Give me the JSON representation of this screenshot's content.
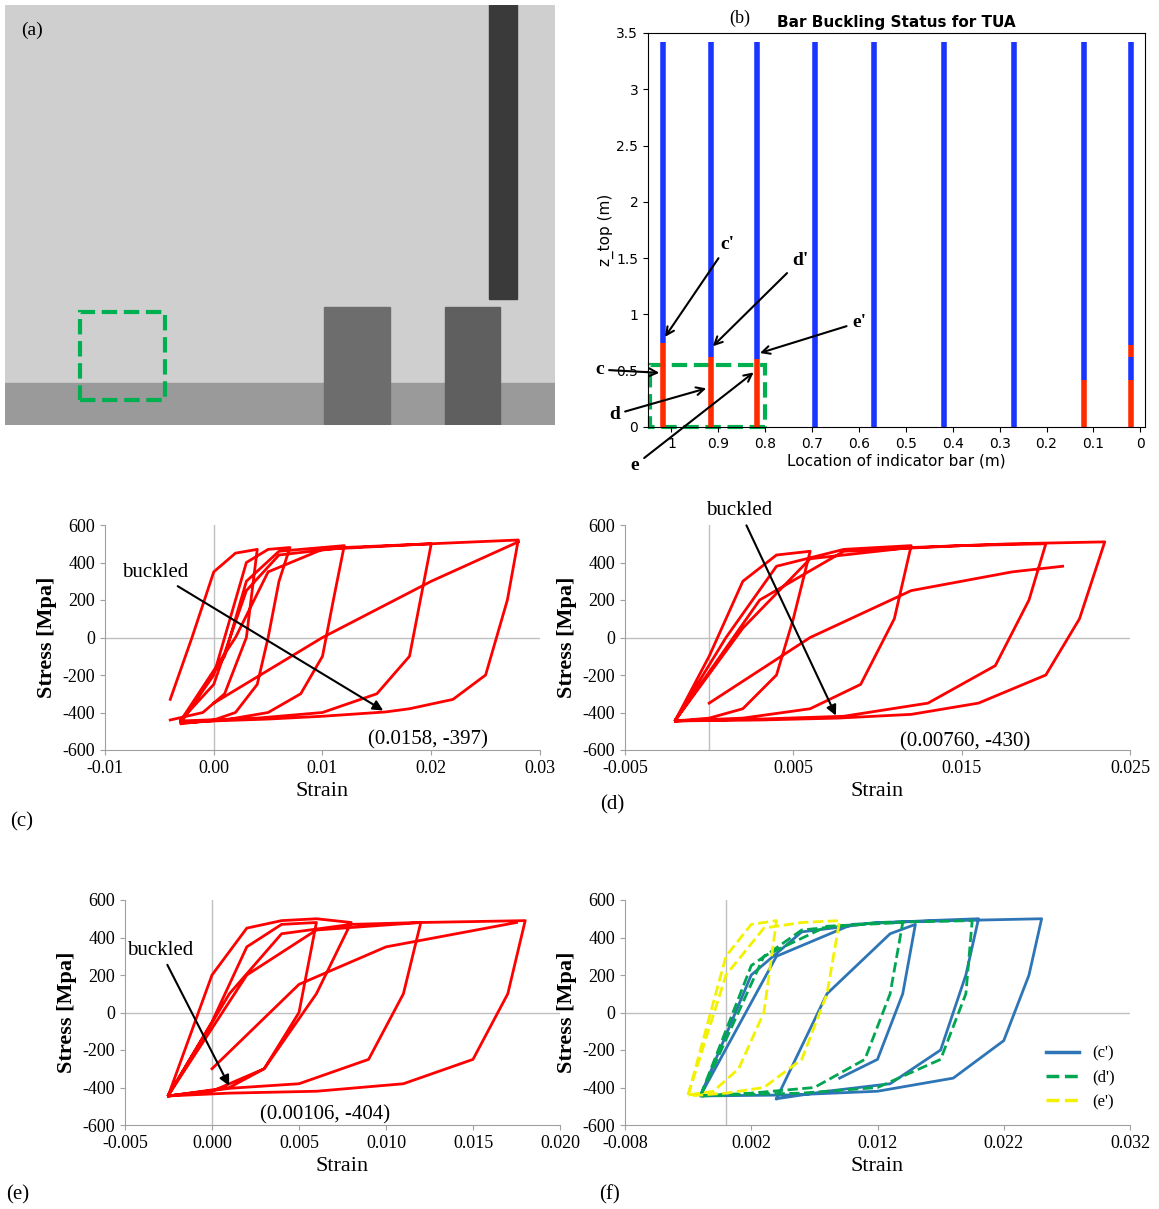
{
  "chart_data": [
    {
      "type": "photo",
      "panel_label": "(a)"
    },
    {
      "type": "segment_bars",
      "panel_label": "(b)",
      "title": "Bar Buckling Status for TUA",
      "x_label": "Location of indicator bar (m)",
      "y_label": "z_top (m)",
      "xlim": [
        1.05,
        -0.01
      ],
      "xticks": [
        1,
        0.9,
        0.8,
        0.7,
        0.6,
        0.5,
        0.4,
        0.3,
        0.2,
        0.1,
        0
      ],
      "ylim": [
        0,
        3.5
      ],
      "yticks": [
        0,
        0.5,
        1,
        1.5,
        2,
        2.5,
        3,
        3.5
      ],
      "bars": [
        {
          "x": 1.017,
          "segments": [
            {
              "from": 0,
              "to": 0.75,
              "color": "#ff2a00"
            },
            {
              "from": 0.75,
              "to": 3.42,
              "color": "#1a35ff"
            }
          ]
        },
        {
          "x": 0.916,
          "segments": [
            {
              "from": 0,
              "to": 0.62,
              "color": "#ff2a00"
            },
            {
              "from": 0.62,
              "to": 3.42,
              "color": "#1a35ff"
            }
          ]
        },
        {
          "x": 0.817,
          "segments": [
            {
              "from": 0,
              "to": 0.6,
              "color": "#ff2a00"
            },
            {
              "from": 0.6,
              "to": 3.42,
              "color": "#1a35ff"
            }
          ]
        },
        {
          "x": 0.693,
          "segments": [
            {
              "from": 0,
              "to": 3.42,
              "color": "#1a35ff"
            }
          ]
        },
        {
          "x": 0.568,
          "segments": [
            {
              "from": 0,
              "to": 3.42,
              "color": "#1a35ff"
            }
          ]
        },
        {
          "x": 0.419,
          "segments": [
            {
              "from": 0,
              "to": 3.42,
              "color": "#1a35ff"
            }
          ]
        },
        {
          "x": 0.269,
          "segments": [
            {
              "from": 0,
              "to": 3.42,
              "color": "#1a35ff"
            }
          ]
        },
        {
          "x": 0.12,
          "segments": [
            {
              "from": 0,
              "to": 0.42,
              "color": "#ff2a00"
            },
            {
              "from": 0.42,
              "to": 3.42,
              "color": "#1a35ff"
            }
          ]
        },
        {
          "x": 0.019,
          "segments": [
            {
              "from": 0,
              "to": 0.42,
              "color": "#ff2a00"
            },
            {
              "from": 0.42,
              "to": 0.62,
              "color": "#1a35ff"
            },
            {
              "from": 0.62,
              "to": 0.73,
              "color": "#ff2a00"
            },
            {
              "from": 0.73,
              "to": 3.42,
              "color": "#1a35ff"
            }
          ]
        }
      ],
      "highlight": {
        "x": [
          1.045,
          0.8
        ],
        "y": [
          0,
          0.55
        ],
        "color": "#00b050"
      },
      "annotations": [
        {
          "text": "c'",
          "point": [
            1.017,
            0.78
          ],
          "text_at": [
            0.88,
            1.62
          ]
        },
        {
          "text": "d'",
          "point": [
            0.916,
            0.7
          ],
          "text_at": [
            0.726,
            1.48
          ]
        },
        {
          "text": "e'",
          "point": [
            0.817,
            0.65
          ],
          "text_at": [
            0.6,
            0.93
          ]
        },
        {
          "text": "c",
          "point": [
            1.02,
            0.48
          ],
          "text_at": [
            1.154,
            0.51
          ]
        },
        {
          "text": "d",
          "point": [
            0.92,
            0.35
          ],
          "text_at": [
            1.122,
            0.11
          ]
        },
        {
          "text": "e",
          "point": [
            0.82,
            0.5
          ],
          "text_at": [
            1.078,
            -0.34
          ]
        }
      ]
    },
    {
      "type": "line",
      "panel_label": "(c)",
      "x_label": "Strain",
      "y_label": "Stress [Mpa]",
      "xlim": [
        -0.01,
        0.03
      ],
      "xticks": [
        -0.01,
        {
          "value": 0,
          "label": "0.00"
        },
        0.01,
        0.02,
        0.03
      ],
      "ylim": [
        -600,
        600
      ],
      "yticks": [
        -600,
        -400,
        -200,
        0,
        200,
        400,
        600
      ],
      "series": [
        {
          "color": "#ff0000",
          "x": [
            -0.003,
            0.0,
            0.002,
            0.003,
            0.005,
            0.007,
            0.006,
            0.005,
            0.004,
            0.002,
            0.0,
            -0.003,
            null,
            -0.003,
            0.001,
            0.003,
            0.006,
            0.012,
            0.011,
            0.01,
            0.008,
            0.005,
            0.001,
            -0.003,
            null,
            -0.003,
            0.002,
            0.005,
            0.01,
            0.02,
            0.019,
            0.018,
            0.015,
            0.01,
            0.004,
            -0.003,
            null,
            -0.003,
            0.0,
            0.003,
            0.006,
            0.012,
            0.02,
            0.028,
            0.027,
            0.025,
            0.022,
            0.018,
            0.0158,
            0.01,
            0.005,
            0.0,
            -0.003,
            null,
            0.0,
            0.01,
            0.02,
            0.028,
            null,
            -0.004,
            -0.002,
            0.0,
            0.002,
            0.004,
            0.003,
            0.001,
            -0.001,
            -0.004
          ],
          "values": [
            -450,
            -200,
            200,
            400,
            470,
            480,
            300,
            0,
            -250,
            -400,
            -440,
            -460,
            null,
            -450,
            -100,
            300,
            460,
            490,
            200,
            -100,
            -300,
            -400,
            -440,
            -455,
            null,
            -440,
            0,
            350,
            470,
            500,
            200,
            -100,
            -300,
            -400,
            -430,
            -445,
            null,
            -440,
            -250,
            250,
            440,
            480,
            500,
            520,
            200,
            -200,
            -330,
            -380,
            -397,
            -420,
            -435,
            -445,
            -455,
            null,
            -350,
            0,
            300,
            510,
            null,
            -330,
            0,
            350,
            450,
            470,
            0,
            -300,
            -400,
            -440
          ]
        }
      ],
      "annotations": [
        {
          "text": "buckled",
          "point": [
            0.0158,
            -397
          ],
          "text_at": [
            -0.0054,
            347
          ]
        },
        {
          "text": "(0.0158, -397)",
          "text_at": [
            0.0197,
            -545
          ]
        }
      ]
    },
    {
      "type": "line",
      "panel_label": "(d)",
      "x_label": "Strain",
      "y_label": "Stress [Mpa]",
      "xlim": [
        -0.005,
        0.025
      ],
      "xticks": [
        -0.005,
        0.005,
        0.015,
        0.025
      ],
      "ylim": [
        -600,
        600
      ],
      "yticks": [
        -600,
        -400,
        -200,
        0,
        200,
        400,
        600
      ],
      "series": [
        {
          "color": "#ff0000",
          "x": [
            -0.002,
            0.0,
            0.002,
            0.004,
            0.006,
            0.005,
            0.004,
            0.002,
            0.0,
            -0.002,
            null,
            -0.002,
            0.001,
            0.004,
            0.008,
            0.012,
            0.011,
            0.009,
            0.006,
            0.002,
            -0.002,
            null,
            -0.002,
            0.002,
            0.006,
            0.012,
            0.018,
            0.0235,
            0.022,
            0.02,
            0.016,
            0.012,
            0.0076,
            0.003,
            -0.002,
            null,
            0.0,
            0.006,
            0.012,
            0.018,
            0.021,
            null,
            -0.002,
            0.003,
            0.008,
            0.015,
            0.02,
            0.019,
            0.017,
            0.013,
            0.008,
            0.003,
            -0.002
          ],
          "values": [
            -440,
            -100,
            300,
            440,
            460,
            100,
            -200,
            -380,
            -430,
            -445,
            null,
            -440,
            0,
            380,
            470,
            490,
            100,
            -250,
            -380,
            -430,
            -445,
            null,
            -440,
            50,
            420,
            480,
            500,
            510,
            100,
            -200,
            -350,
            -410,
            -430,
            -440,
            -445,
            null,
            -350,
            0,
            250,
            350,
            380,
            null,
            -440,
            200,
            460,
            490,
            500,
            200,
            -150,
            -350,
            -420,
            -435,
            -445
          ]
        }
      ],
      "annotations": [
        {
          "text": "buckled",
          "point": [
            0.0076,
            -430
          ],
          "text_at": [
            0.0018,
            677
          ]
        },
        {
          "text": "(0.00760, -430)",
          "text_at": [
            0.0152,
            -555
          ]
        }
      ]
    },
    {
      "type": "line",
      "panel_label": "(e)",
      "x_label": "Strain",
      "y_label": "Stress [Mpa]",
      "xlim": [
        -0.005,
        0.02
      ],
      "xticks": [
        -0.005,
        {
          "value": 0,
          "label": "0.000"
        },
        0.005,
        {
          "value": 0.01,
          "label": "0.010"
        },
        0.015,
        {
          "value": 0.02,
          "label": "0.020"
        }
      ],
      "ylim": [
        -600,
        600
      ],
      "yticks": [
        -600,
        -400,
        -200,
        0,
        200,
        400,
        600
      ],
      "series": [
        {
          "color": "#ff0000",
          "x": [
            -0.0025,
            0.0,
            0.002,
            0.004,
            0.006,
            0.005,
            0.003,
            0.001,
            -0.0025,
            null,
            -0.0025,
            0.001,
            0.004,
            0.008,
            0.012,
            0.011,
            0.009,
            0.005,
            0.00106,
            -0.0025,
            null,
            -0.0025,
            0.002,
            0.006,
            0.012,
            0.018,
            0.017,
            0.015,
            0.011,
            0.006,
            0.001,
            -0.0025,
            null,
            0.0,
            0.005,
            0.01,
            0.0175,
            null,
            -0.0025,
            0.0,
            0.002,
            0.004,
            0.006,
            0.008,
            0.006,
            0.003,
            0.0,
            -0.0025
          ],
          "values": [
            -440,
            -50,
            350,
            470,
            480,
            0,
            -300,
            -400,
            -445,
            null,
            -440,
            100,
            420,
            470,
            480,
            100,
            -250,
            -380,
            -404,
            -445,
            null,
            -440,
            200,
            440,
            480,
            490,
            100,
            -250,
            -380,
            -420,
            -430,
            -445,
            null,
            -300,
            150,
            350,
            480,
            null,
            -440,
            200,
            450,
            490,
            500,
            480,
            100,
            -300,
            -420,
            -445
          ]
        }
      ],
      "annotations": [
        {
          "text": "buckled",
          "point": [
            0.00106,
            -404
          ],
          "text_at": [
            -0.003,
            333
          ]
        },
        {
          "text": "(0.00106, -404)",
          "text_at": [
            0.0065,
            -545
          ]
        }
      ]
    },
    {
      "type": "line",
      "panel_label": "(f)",
      "x_label": "Strain",
      "y_label": "Stress [Mpa]",
      "xlim": [
        -0.008,
        0.032
      ],
      "xticks": [
        -0.008,
        0.002,
        0.012,
        0.022,
        0.032
      ],
      "ylim": [
        -600,
        600
      ],
      "yticks": [
        -600,
        -400,
        -200,
        0,
        200,
        400,
        600
      ],
      "legend": "lower right",
      "series": [
        {
          "name": "(c')",
          "color": "#2e75b6",
          "line_style": "solid",
          "x": [
            -0.002,
            0.002,
            0.006,
            0.012,
            0.018,
            0.025,
            0.024,
            0.022,
            0.018,
            0.012,
            0.005,
            -0.002,
            null,
            -0.002,
            0.004,
            0.01,
            0.016,
            0.02,
            0.019,
            0.017,
            0.013,
            0.008,
            0.004,
            null,
            0.004,
            0.008,
            0.013,
            0.015,
            0.014,
            0.012,
            0.009
          ],
          "values": [
            -440,
            200,
            430,
            480,
            490,
            500,
            200,
            -150,
            -350,
            -420,
            -440,
            -445,
            null,
            -440,
            300,
            470,
            490,
            500,
            200,
            -200,
            -380,
            -420,
            -460,
            null,
            -460,
            100,
            420,
            470,
            100,
            -250,
            -350
          ]
        },
        {
          "name": "(d')",
          "color": "#00a651",
          "line_style": "dashed",
          "x": [
            -0.002,
            0.002,
            0.006,
            0.012,
            0.0195,
            0.019,
            0.017,
            0.012,
            0.006,
            0.0,
            -0.002,
            null,
            -0.002,
            0.003,
            0.008,
            0.014,
            0.013,
            0.011,
            0.007,
            0.002,
            -0.002
          ],
          "values": [
            -440,
            250,
            440,
            480,
            490,
            100,
            -250,
            -400,
            -430,
            -440,
            -445,
            null,
            -440,
            300,
            460,
            480,
            100,
            -250,
            -400,
            -430,
            -445
          ]
        },
        {
          "name": "(e')",
          "color": "#f2f200",
          "line_style": "dashed",
          "x": [
            -0.003,
            0.0,
            0.003,
            0.006,
            0.009,
            0.008,
            0.006,
            0.003,
            0.0,
            -0.003,
            null,
            -0.003,
            0.0,
            0.002,
            0.004,
            0.003,
            0.001,
            -0.001,
            -0.003
          ],
          "values": [
            -440,
            200,
            450,
            480,
            490,
            100,
            -250,
            -400,
            -430,
            -445,
            null,
            -440,
            300,
            470,
            490,
            0,
            -300,
            -420,
            -440
          ]
        }
      ]
    }
  ]
}
